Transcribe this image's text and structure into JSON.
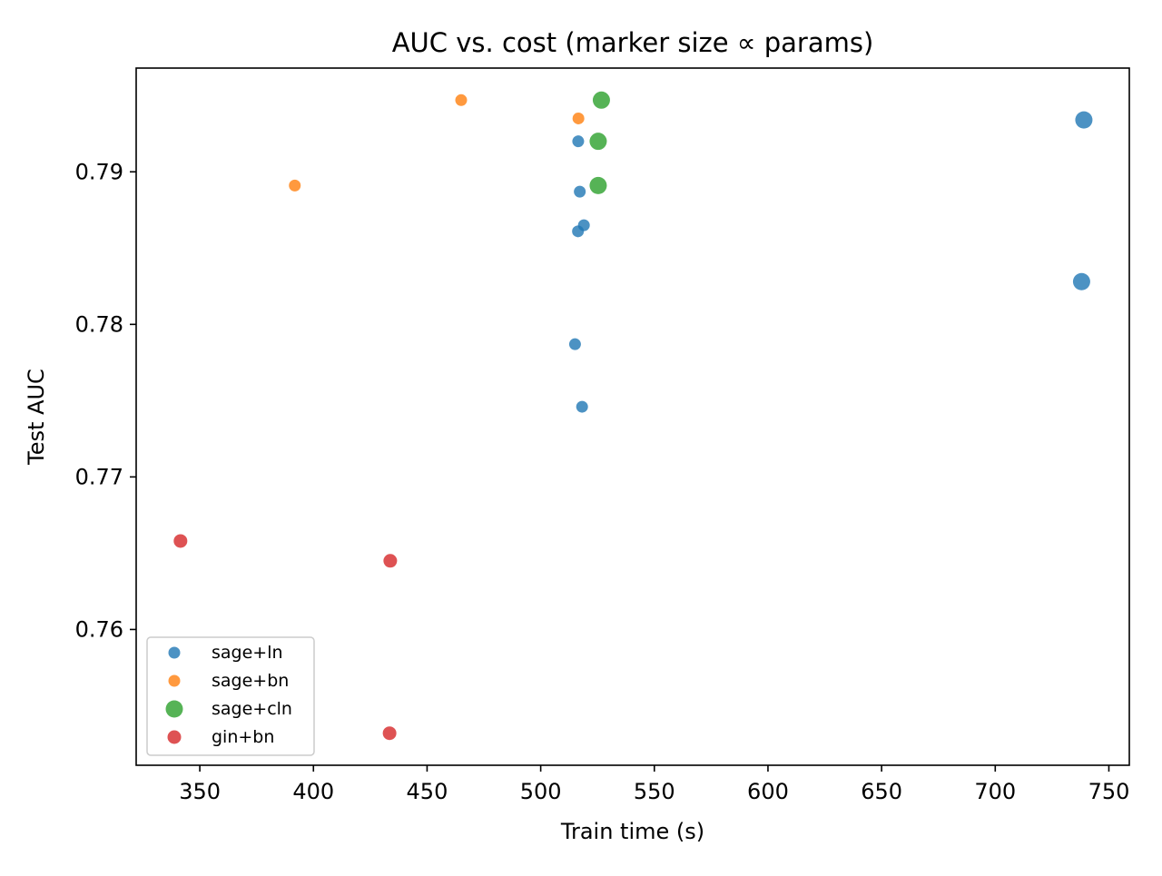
{
  "chart_data": {
    "type": "scatter",
    "title": "AUC vs. cost (marker size ∝ params)",
    "xlabel": "Train time (s)",
    "ylabel": "Test AUC",
    "xlim": [
      322,
      759
    ],
    "ylim": [
      0.7511,
      0.7968
    ],
    "xticks": [
      350,
      400,
      450,
      500,
      550,
      600,
      650,
      700,
      750
    ],
    "xtick_labels": [
      "350",
      "400",
      "450",
      "500",
      "550",
      "600",
      "650",
      "700",
      "750"
    ],
    "yticks": [
      0.76,
      0.77,
      0.78,
      0.79
    ],
    "ytick_labels": [
      "0.76",
      "0.77",
      "0.78",
      "0.79"
    ],
    "grid": false,
    "legend_position": "lower-left",
    "series": [
      {
        "name": "sage+ln",
        "color": "#1f77b4",
        "marker_scale": "small",
        "points": [
          {
            "x": 516.5,
            "y": 0.792,
            "size": "small"
          },
          {
            "x": 517.2,
            "y": 0.7887,
            "size": "small"
          },
          {
            "x": 519.0,
            "y": 0.7865,
            "size": "small"
          },
          {
            "x": 516.4,
            "y": 0.7861,
            "size": "small"
          },
          {
            "x": 515.1,
            "y": 0.7787,
            "size": "small"
          },
          {
            "x": 518.2,
            "y": 0.7746,
            "size": "small"
          },
          {
            "x": 739.0,
            "y": 0.7934,
            "size": "large"
          },
          {
            "x": 738.0,
            "y": 0.7828,
            "size": "large"
          }
        ]
      },
      {
        "name": "sage+bn",
        "color": "#ff7f0e",
        "marker_scale": "small",
        "points": [
          {
            "x": 465.0,
            "y": 0.7947,
            "size": "small"
          },
          {
            "x": 516.6,
            "y": 0.7935,
            "size": "small"
          },
          {
            "x": 391.8,
            "y": 0.7891,
            "size": "small"
          }
        ]
      },
      {
        "name": "sage+cln",
        "color": "#2ca02c",
        "marker_scale": "large",
        "points": [
          {
            "x": 526.7,
            "y": 0.7947,
            "size": "large"
          },
          {
            "x": 525.3,
            "y": 0.792,
            "size": "large"
          },
          {
            "x": 525.3,
            "y": 0.7891,
            "size": "large"
          }
        ]
      },
      {
        "name": "gin+bn",
        "color": "#d62728",
        "marker_scale": "medium",
        "points": [
          {
            "x": 341.5,
            "y": 0.7658,
            "size": "medium"
          },
          {
            "x": 433.8,
            "y": 0.7645,
            "size": "medium"
          },
          {
            "x": 433.5,
            "y": 0.7532,
            "size": "medium"
          }
        ]
      }
    ]
  }
}
